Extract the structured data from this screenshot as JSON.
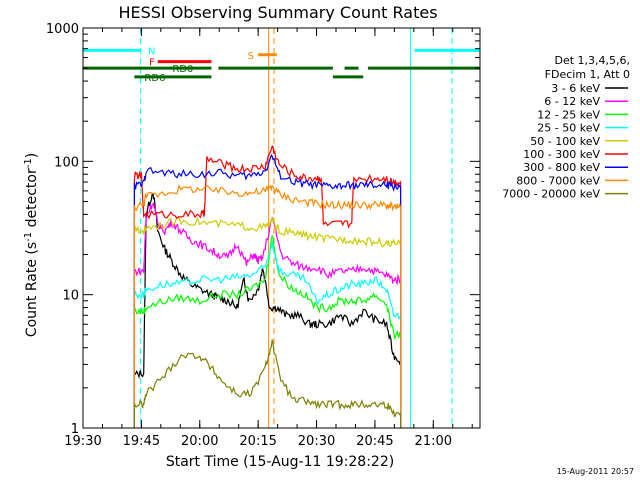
{
  "chart_data": {
    "type": "line",
    "title": "HESSI Observing Summary Count Rates",
    "xlabel": "Start Time (15-Aug-11 19:28:22)",
    "ylabel": "Count Rate (s",
    "ylabel_sup": "-1",
    "ylabel_mid": " detector",
    "ylabel_end": ")",
    "y_scale": "log",
    "ylim": [
      1,
      1000
    ],
    "xlim_minutes": [
      19.5,
      21.2
    ],
    "x_ticks": [
      {
        "label": "19:30",
        "hour": 19.5
      },
      {
        "label": "19:45",
        "hour": 19.75
      },
      {
        "label": "20:00",
        "hour": 20.0
      },
      {
        "label": "20:15",
        "hour": 20.25
      },
      {
        "label": "20:30",
        "hour": 20.5
      },
      {
        "label": "20:45",
        "hour": 20.75
      },
      {
        "label": "21:00",
        "hour": 21.0
      }
    ],
    "y_ticks": [
      {
        "label": "1",
        "value": 1
      },
      {
        "label": "10",
        "value": 10
      },
      {
        "label": "100",
        "value": 100
      },
      {
        "label": "1000",
        "value": 1000
      }
    ],
    "legend_header": [
      "Det 1,3,4,5,6,",
      "FDecim 1, Att 0"
    ],
    "legend_position": "right",
    "series": [
      {
        "name": "3 - 6 keV",
        "color": "#000000",
        "points": [
          [
            19.72,
            2.5
          ],
          [
            19.76,
            2.6
          ],
          [
            19.77,
            40
          ],
          [
            19.8,
            60
          ],
          [
            19.82,
            30
          ],
          [
            19.85,
            22
          ],
          [
            19.88,
            18
          ],
          [
            19.92,
            14
          ],
          [
            19.96,
            12
          ],
          [
            20.0,
            11
          ],
          [
            20.05,
            10
          ],
          [
            20.08,
            9.5
          ],
          [
            20.12,
            9
          ],
          [
            20.16,
            8
          ],
          [
            20.19,
            13
          ],
          [
            20.21,
            9
          ],
          [
            20.25,
            11
          ],
          [
            20.27,
            16
          ],
          [
            20.3,
            8
          ],
          [
            20.33,
            8
          ],
          [
            20.37,
            7
          ],
          [
            20.42,
            7
          ],
          [
            20.47,
            6
          ],
          [
            20.5,
            6
          ],
          [
            20.55,
            6
          ],
          [
            20.6,
            7
          ],
          [
            20.65,
            6
          ],
          [
            20.7,
            7.5
          ],
          [
            20.75,
            6.5
          ],
          [
            20.8,
            6
          ],
          [
            20.83,
            3.5
          ],
          [
            20.86,
            3.2
          ]
        ]
      },
      {
        "name": "6 - 12 keV",
        "color": "#ff00ff",
        "points": [
          [
            19.72,
            15
          ],
          [
            19.76,
            15
          ],
          [
            19.77,
            38
          ],
          [
            19.8,
            50
          ],
          [
            19.82,
            34
          ],
          [
            19.85,
            30
          ],
          [
            19.88,
            35
          ],
          [
            19.92,
            30
          ],
          [
            19.96,
            26
          ],
          [
            20.0,
            24
          ],
          [
            20.04,
            22
          ],
          [
            20.08,
            20
          ],
          [
            20.12,
            19
          ],
          [
            20.16,
            24
          ],
          [
            20.2,
            17
          ],
          [
            20.23,
            20
          ],
          [
            20.25,
            18
          ],
          [
            20.27,
            19
          ],
          [
            20.31,
            38
          ],
          [
            20.35,
            20
          ],
          [
            20.4,
            17
          ],
          [
            20.45,
            16
          ],
          [
            20.5,
            16
          ],
          [
            20.55,
            14
          ],
          [
            20.6,
            15
          ],
          [
            20.65,
            15
          ],
          [
            20.7,
            16
          ],
          [
            20.75,
            15
          ],
          [
            20.8,
            14
          ],
          [
            20.83,
            13
          ],
          [
            20.86,
            13
          ]
        ]
      },
      {
        "name": "12 - 25 keV",
        "color": "#00ff00",
        "points": [
          [
            19.72,
            7.5
          ],
          [
            19.76,
            7.5
          ],
          [
            19.77,
            8
          ],
          [
            19.85,
            9
          ],
          [
            19.92,
            9.5
          ],
          [
            20.0,
            9
          ],
          [
            20.08,
            10
          ],
          [
            20.16,
            10
          ],
          [
            20.22,
            11
          ],
          [
            20.28,
            13
          ],
          [
            20.31,
            28
          ],
          [
            20.34,
            14
          ],
          [
            20.4,
            11
          ],
          [
            20.45,
            10
          ],
          [
            20.5,
            8
          ],
          [
            20.55,
            8
          ],
          [
            20.6,
            9
          ],
          [
            20.65,
            9
          ],
          [
            20.7,
            9
          ],
          [
            20.75,
            10
          ],
          [
            20.8,
            8.5
          ],
          [
            20.83,
            5
          ],
          [
            20.86,
            5
          ]
        ]
      },
      {
        "name": "25 - 50 keV",
        "color": "#00ffff",
        "points": [
          [
            19.72,
            10
          ],
          [
            19.76,
            10
          ],
          [
            19.77,
            11
          ],
          [
            19.85,
            12
          ],
          [
            19.92,
            12
          ],
          [
            20.0,
            13
          ],
          [
            20.08,
            13
          ],
          [
            20.16,
            13.5
          ],
          [
            20.22,
            14
          ],
          [
            20.28,
            16
          ],
          [
            20.31,
            25
          ],
          [
            20.34,
            15
          ],
          [
            20.4,
            14
          ],
          [
            20.45,
            13
          ],
          [
            20.5,
            9
          ],
          [
            20.55,
            10
          ],
          [
            20.6,
            11
          ],
          [
            20.65,
            12
          ],
          [
            20.7,
            12
          ],
          [
            20.75,
            13
          ],
          [
            20.8,
            11
          ],
          [
            20.83,
            7
          ],
          [
            20.86,
            7
          ]
        ]
      },
      {
        "name": "50 - 100 keV",
        "color": "#cccc00",
        "points": [
          [
            19.72,
            30
          ],
          [
            19.76,
            30
          ],
          [
            19.77,
            32
          ],
          [
            19.85,
            34
          ],
          [
            19.92,
            36
          ],
          [
            20.0,
            35
          ],
          [
            20.08,
            34
          ],
          [
            20.16,
            33
          ],
          [
            20.22,
            32
          ],
          [
            20.28,
            32
          ],
          [
            20.31,
            36
          ],
          [
            20.34,
            30
          ],
          [
            20.4,
            29
          ],
          [
            20.45,
            28
          ],
          [
            20.5,
            27
          ],
          [
            20.55,
            26
          ],
          [
            20.6,
            26
          ],
          [
            20.65,
            26
          ],
          [
            20.7,
            25
          ],
          [
            20.75,
            25
          ],
          [
            20.8,
            24
          ],
          [
            20.83,
            24
          ],
          [
            20.86,
            24
          ]
        ]
      },
      {
        "name": "100 - 300 keV",
        "color": "#ff0000",
        "points": [
          [
            19.72,
            78
          ],
          [
            19.75,
            78
          ],
          [
            19.76,
            40
          ],
          [
            19.85,
            40
          ],
          [
            19.92,
            40
          ],
          [
            20.0,
            40
          ],
          [
            20.02,
            40
          ],
          [
            20.03,
            105
          ],
          [
            20.1,
            95
          ],
          [
            20.16,
            88
          ],
          [
            20.22,
            88
          ],
          [
            20.28,
            92
          ],
          [
            20.31,
            130
          ],
          [
            20.34,
            95
          ],
          [
            20.4,
            80
          ],
          [
            20.45,
            75
          ],
          [
            20.5,
            75
          ],
          [
            20.52,
            75
          ],
          [
            20.53,
            33
          ],
          [
            20.6,
            34
          ],
          [
            20.65,
            34
          ],
          [
            20.66,
            75
          ],
          [
            20.75,
            75
          ],
          [
            20.8,
            75
          ],
          [
            20.83,
            70
          ],
          [
            20.86,
            70
          ]
        ]
      },
      {
        "name": "300 - 800 keV",
        "color": "#0000ff",
        "points": [
          [
            19.72,
            65
          ],
          [
            19.76,
            68
          ],
          [
            19.77,
            85
          ],
          [
            19.85,
            82
          ],
          [
            19.92,
            80
          ],
          [
            20.0,
            80
          ],
          [
            20.08,
            82
          ],
          [
            20.16,
            78
          ],
          [
            20.22,
            78
          ],
          [
            20.28,
            85
          ],
          [
            20.31,
            112
          ],
          [
            20.34,
            80
          ],
          [
            20.4,
            70
          ],
          [
            20.45,
            68
          ],
          [
            20.5,
            66
          ],
          [
            20.55,
            65
          ],
          [
            20.6,
            65
          ],
          [
            20.65,
            66
          ],
          [
            20.7,
            66
          ],
          [
            20.75,
            66
          ],
          [
            20.8,
            66
          ],
          [
            20.83,
            65
          ],
          [
            20.86,
            65
          ]
        ]
      },
      {
        "name": "800 - 7000 keV",
        "color": "#ff8800",
        "points": [
          [
            19.72,
            45
          ],
          [
            19.76,
            48
          ],
          [
            19.77,
            55
          ],
          [
            19.85,
            58
          ],
          [
            19.92,
            62
          ],
          [
            20.0,
            62
          ],
          [
            20.08,
            60
          ],
          [
            20.16,
            58
          ],
          [
            20.22,
            58
          ],
          [
            20.28,
            60
          ],
          [
            20.31,
            65
          ],
          [
            20.34,
            57
          ],
          [
            20.4,
            52
          ],
          [
            20.45,
            50
          ],
          [
            20.5,
            48
          ],
          [
            20.55,
            47
          ],
          [
            20.6,
            47
          ],
          [
            20.65,
            47
          ],
          [
            20.7,
            47
          ],
          [
            20.75,
            47
          ],
          [
            20.8,
            47
          ],
          [
            20.83,
            45
          ],
          [
            20.86,
            45
          ]
        ]
      },
      {
        "name": "7000 - 20000 keV",
        "color": "#808000",
        "points": [
          [
            19.72,
            1.5
          ],
          [
            19.76,
            1.5
          ],
          [
            19.77,
            1.8
          ],
          [
            19.85,
            2.5
          ],
          [
            19.92,
            3.5
          ],
          [
            20.0,
            3.5
          ],
          [
            20.05,
            2.8
          ],
          [
            20.1,
            2.2
          ],
          [
            20.16,
            1.8
          ],
          [
            20.22,
            1.8
          ],
          [
            20.28,
            2.8
          ],
          [
            20.31,
            4.5
          ],
          [
            20.34,
            2.5
          ],
          [
            20.4,
            1.6
          ],
          [
            20.45,
            1.6
          ],
          [
            20.5,
            1.5
          ],
          [
            20.55,
            1.5
          ],
          [
            20.6,
            1.5
          ],
          [
            20.65,
            1.5
          ],
          [
            20.7,
            1.5
          ],
          [
            20.75,
            1.5
          ],
          [
            20.8,
            1.5
          ],
          [
            20.83,
            1.3
          ],
          [
            20.86,
            1.3
          ]
        ]
      }
    ],
    "flag_bars": [
      {
        "label": "N",
        "color": "#00ffff",
        "value": 680,
        "segments": [
          [
            19.5,
            19.75
          ],
          [
            20.92,
            21.2
          ]
        ]
      },
      {
        "label": "F",
        "color": "#ff0000",
        "value": 560,
        "segments": [
          [
            19.82,
            20.05
          ]
        ]
      },
      {
        "label": "RD0",
        "color": "#006600",
        "value": 500,
        "segments": [
          [
            19.5,
            20.05
          ],
          [
            20.08,
            20.57
          ],
          [
            20.62,
            20.68
          ],
          [
            20.72,
            21.2
          ]
        ]
      },
      {
        "label": "RD6",
        "color": "#006600",
        "value": 430,
        "segments": [
          [
            19.72,
            20.05
          ],
          [
            20.57,
            20.7
          ]
        ]
      },
      {
        "label": "S",
        "color": "#ff8800",
        "value": 630,
        "segments": [
          [
            20.25,
            20.33
          ]
        ]
      }
    ],
    "vertical_lines": [
      {
        "hour": 19.747,
        "color": "#00ffff",
        "style": "dashed"
      },
      {
        "hour": 20.903,
        "color": "#00ffff",
        "style": "solid"
      },
      {
        "hour": 21.08,
        "color": "#00ffff",
        "style": "dashed"
      },
      {
        "hour": 20.295,
        "color": "#ff8800",
        "style": "solid"
      },
      {
        "hour": 20.318,
        "color": "#ff8800",
        "style": "dashed"
      }
    ],
    "timestamp": "15-Aug-2011 20:57"
  }
}
